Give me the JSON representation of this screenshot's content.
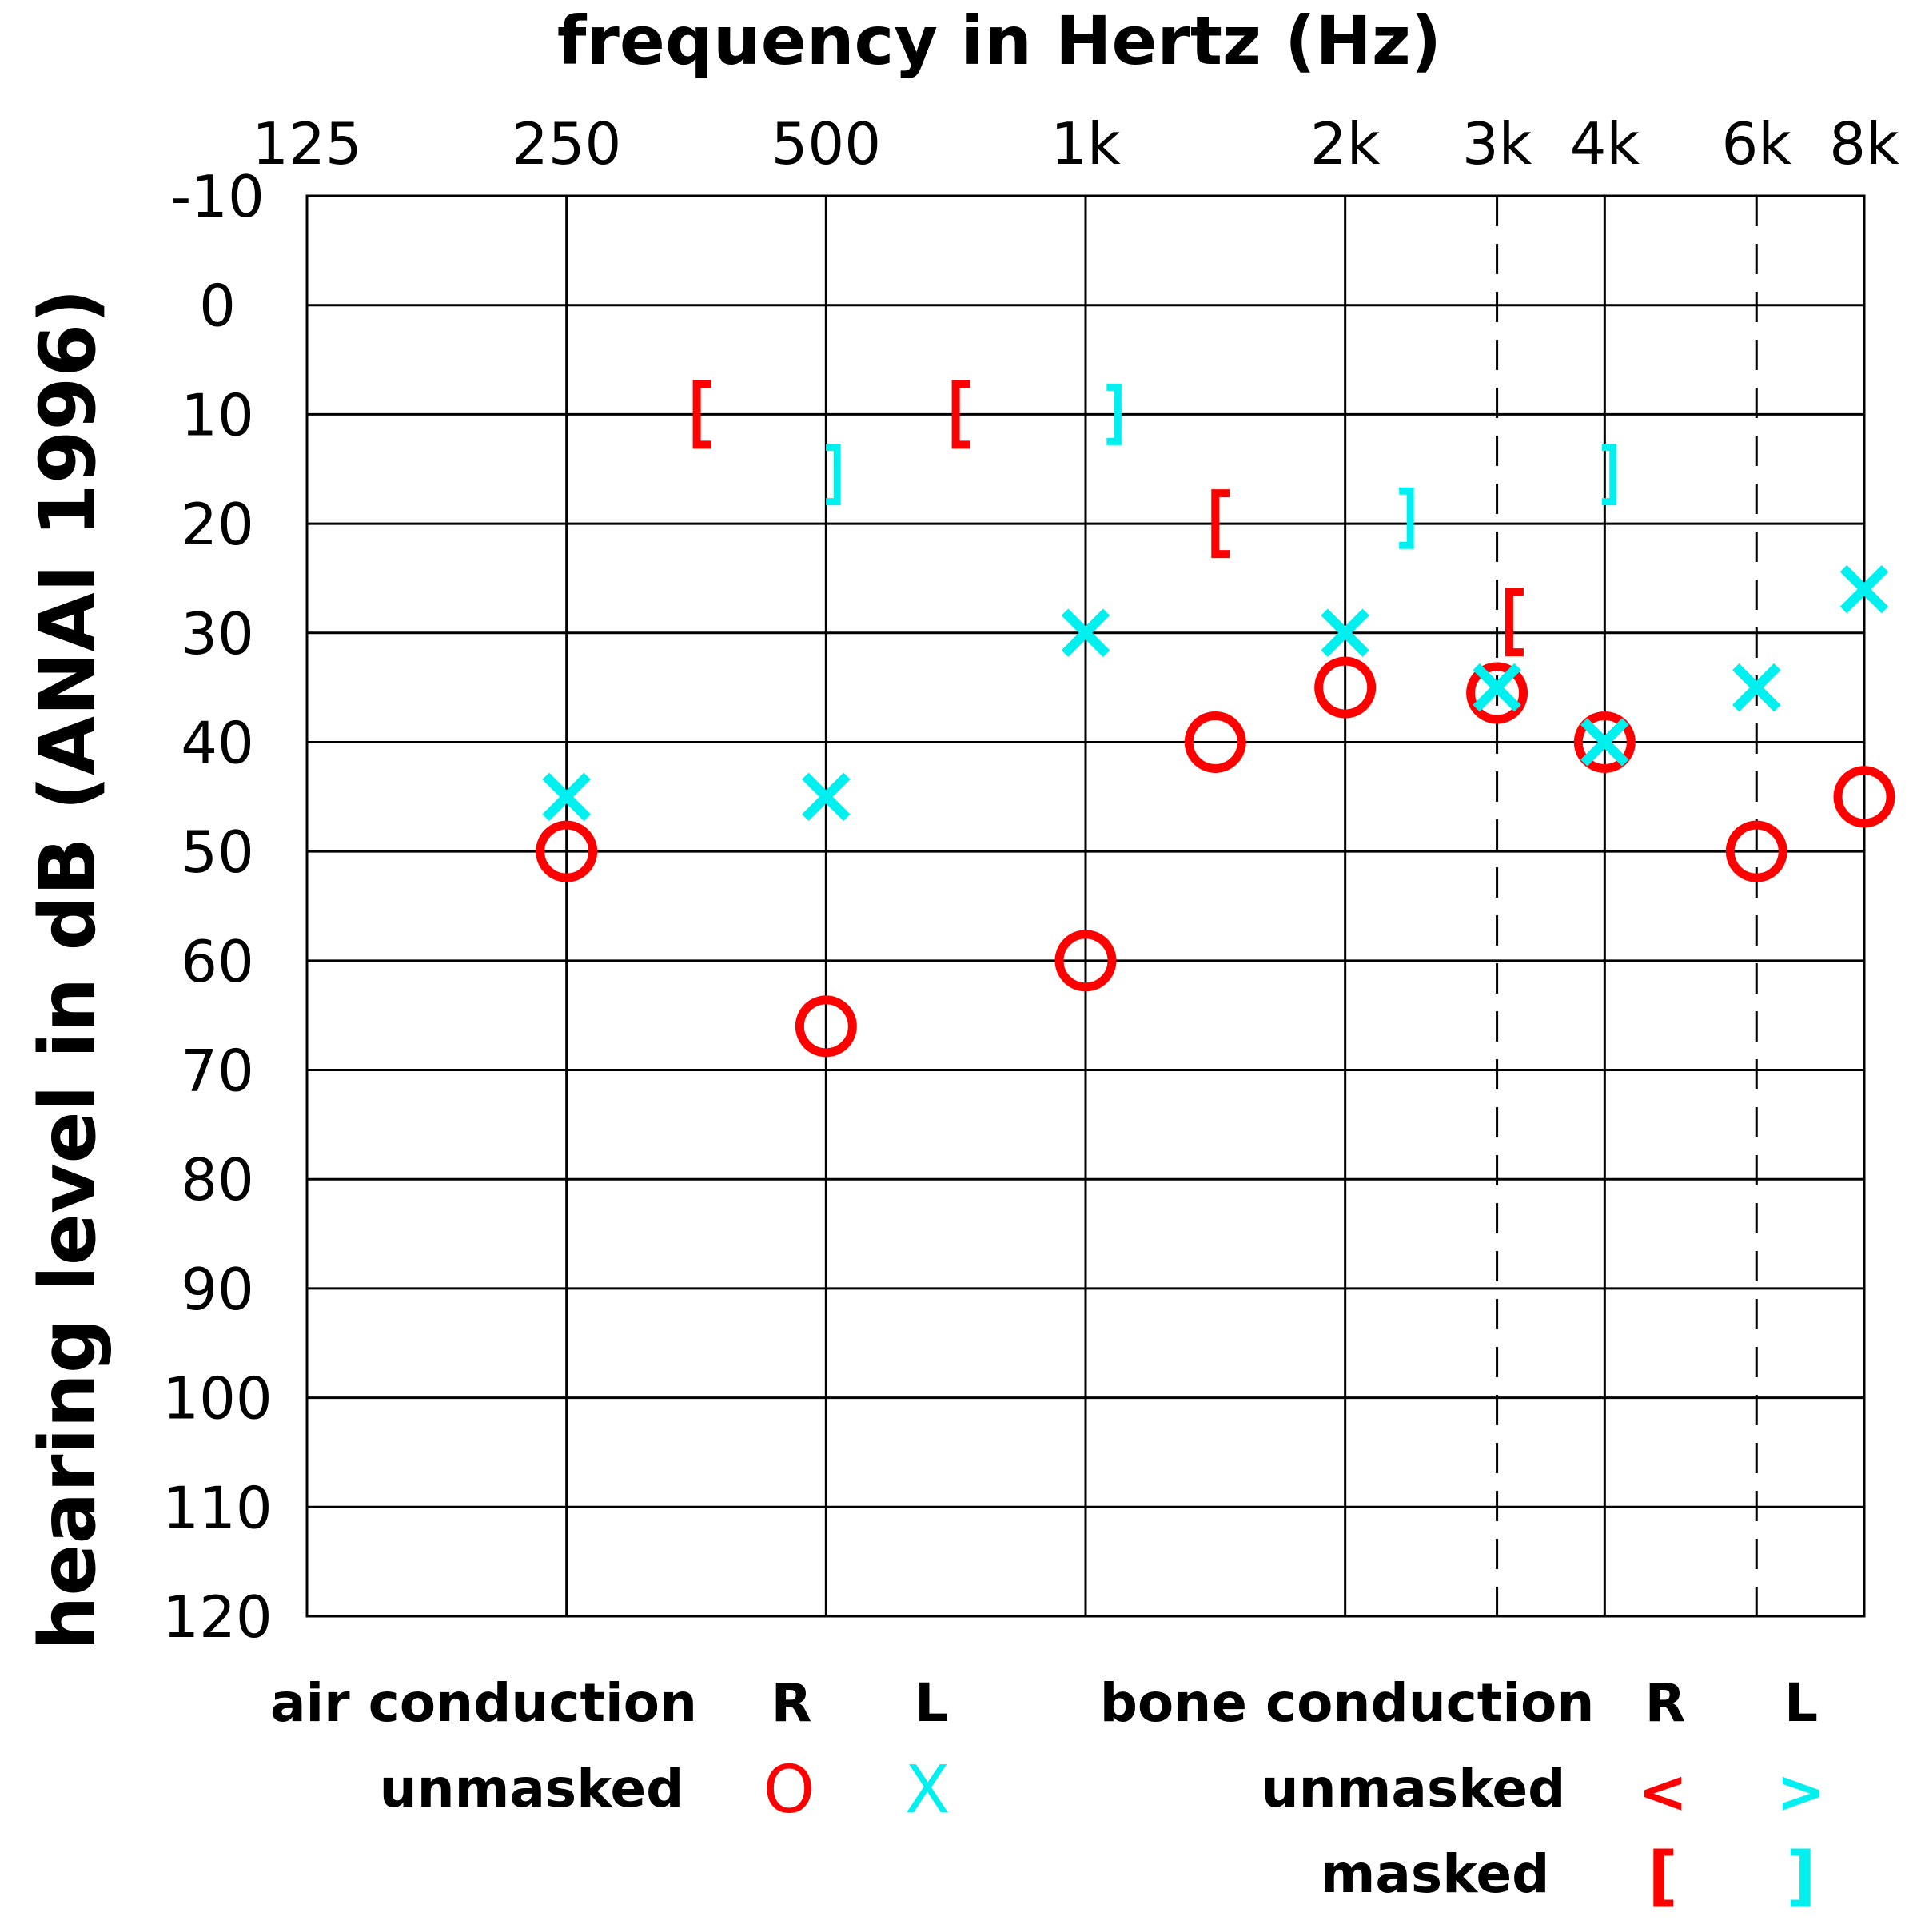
{
  "chart_data": {
    "type": "scatter",
    "title": "frequency in Hertz (Hz)",
    "xlabel": "frequency in Hertz (Hz)",
    "ylabel": "hearing level in dB (ANAI 1996)",
    "x_ticks": [
      "125",
      "250",
      "500",
      "1k",
      "2k",
      "3k",
      "4k",
      "6k",
      "8k"
    ],
    "x_tick_values": [
      125,
      250,
      500,
      1000,
      2000,
      3000,
      4000,
      6000,
      8000
    ],
    "x_scale": "log2",
    "dashed_frequencies": [
      3000,
      6000
    ],
    "y_ticks": [
      "-10",
      "0",
      "10",
      "20",
      "30",
      "40",
      "50",
      "60",
      "70",
      "80",
      "90",
      "100",
      "110",
      "120"
    ],
    "ylim": [
      -10,
      120
    ],
    "y_inverted": true,
    "grid": true,
    "colors": {
      "right": "#ff0000",
      "left": "#00f0f0"
    },
    "series": [
      {
        "name": "air conduction unmasked R",
        "symbol": "O",
        "color": "#ff0000",
        "points": [
          {
            "x": 250,
            "y": 50
          },
          {
            "x": 500,
            "y": 66
          },
          {
            "x": 1000,
            "y": 60
          },
          {
            "x": 1414,
            "y": 40
          },
          {
            "x": 2000,
            "y": 35
          },
          {
            "x": 3000,
            "y": 35.5
          },
          {
            "x": 4000,
            "y": 40
          },
          {
            "x": 6000,
            "y": 50
          },
          {
            "x": 8000,
            "y": 45
          }
        ]
      },
      {
        "name": "air conduction unmasked L",
        "symbol": "X",
        "color": "#00f0f0",
        "points": [
          {
            "x": 250,
            "y": 45
          },
          {
            "x": 500,
            "y": 45
          },
          {
            "x": 1000,
            "y": 30
          },
          {
            "x": 2000,
            "y": 30
          },
          {
            "x": 3000,
            "y": 35
          },
          {
            "x": 4000,
            "y": 40
          },
          {
            "x": 6000,
            "y": 35
          },
          {
            "x": 8000,
            "y": 26
          }
        ]
      },
      {
        "name": "bone conduction masked R",
        "symbol": "[",
        "color": "#ff0000",
        "points": [
          {
            "x": 354,
            "y": 10
          },
          {
            "x": 707,
            "y": 10
          },
          {
            "x": 1414,
            "y": 20
          },
          {
            "x": 3100,
            "y": 29
          }
        ]
      },
      {
        "name": "bone conduction masked L",
        "symbol": "]",
        "color": "#00f0f0",
        "points": [
          {
            "x": 515,
            "y": 15.5
          },
          {
            "x": 1090,
            "y": 10
          },
          {
            "x": 2380,
            "y": 19.5
          },
          {
            "x": 4090,
            "y": 15.5
          }
        ]
      }
    ],
    "legend": {
      "air_title": "air conduction",
      "bone_title": "bone conduction",
      "right": "R",
      "left": "L",
      "unmasked": "unmasked",
      "masked": "masked",
      "air_unmasked_r": "O",
      "air_unmasked_l": "X",
      "bone_unmasked_r": "<",
      "bone_unmasked_l": ">",
      "bone_masked_r": "[",
      "bone_masked_l": "]"
    }
  }
}
